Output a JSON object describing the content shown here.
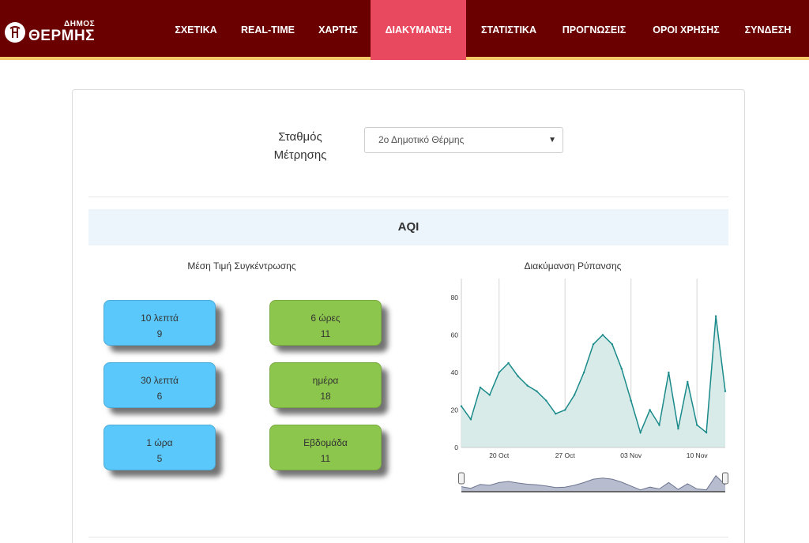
{
  "brand": {
    "top": "ΔΗΜΟΣ",
    "main": "ΘΕΡΜΗΣ",
    "icon": "logo-emblem-icon"
  },
  "nav": {
    "items": [
      {
        "label": "ΣΧΕΤΙΚΑ"
      },
      {
        "label": "REAL-TIME"
      },
      {
        "label": "ΧΑΡΤΗΣ"
      },
      {
        "label": "ΔΙΑΚΥΜΑΝΣΗ",
        "active": true
      },
      {
        "label": "ΣΤΑΤΙΣΤΙΚΑ"
      },
      {
        "label": "ΠΡΟΓΝΩΣΕΙΣ"
      },
      {
        "label": "ΟΡΟΙ ΧΡΗΣΗΣ"
      },
      {
        "label": "ΣΥΝΔΕΣΗ"
      }
    ],
    "active_color": "#e8495f",
    "bar_color": "#6b0000"
  },
  "station": {
    "label_line1": "Σταθμός",
    "label_line2": "Μέτρησης",
    "selected": "2ο Δημοτικό Θέρμης"
  },
  "section": {
    "title": "AQI"
  },
  "averages": {
    "title": "Μέση Τιμή Συγκέντρωσης",
    "cards": [
      {
        "label": "10 λεπτά",
        "value": "9",
        "color": "#5bc8fb"
      },
      {
        "label": "30 λεπτά",
        "value": "6",
        "color": "#5bc8fb"
      },
      {
        "label": "1 ώρα",
        "value": "5",
        "color": "#5bc8fb"
      },
      {
        "label": "6 ώρες",
        "value": "11",
        "color": "#8dc64c"
      },
      {
        "label": "ημέρα",
        "value": "18",
        "color": "#8dc64c"
      },
      {
        "label": "Εβδομάδα",
        "value": "11",
        "color": "#8dc64c"
      }
    ]
  },
  "chart_data": {
    "type": "area",
    "title": "Διακύμανση Ρύπανσης",
    "xlabel": "",
    "ylabel": "",
    "ylim": [
      0,
      90
    ],
    "yticks": [
      0,
      20,
      40,
      60,
      80
    ],
    "x_range": [
      "2019-10-16",
      "2019-11-13"
    ],
    "xticks": [
      {
        "date": "2019-10-20",
        "label": "20 Oct"
      },
      {
        "date": "2019-10-27",
        "label": "27 Oct"
      },
      {
        "date": "2019-11-03",
        "label": "03 Nov"
      },
      {
        "date": "2019-11-10",
        "label": "10 Nov"
      }
    ],
    "grid": "vertical",
    "line_color": "#1a8a8a",
    "fill_color": "#d9ebe9",
    "navigator": true,
    "x": [
      "2019-10-16",
      "2019-10-17",
      "2019-10-18",
      "2019-10-19",
      "2019-10-20",
      "2019-10-21",
      "2019-10-22",
      "2019-10-23",
      "2019-10-24",
      "2019-10-25",
      "2019-10-26",
      "2019-10-27",
      "2019-10-28",
      "2019-10-29",
      "2019-10-30",
      "2019-10-31",
      "2019-11-01",
      "2019-11-02",
      "2019-11-03",
      "2019-11-04",
      "2019-11-05",
      "2019-11-06",
      "2019-11-07",
      "2019-11-08",
      "2019-11-09",
      "2019-11-10",
      "2019-11-11",
      "2019-11-12",
      "2019-11-13"
    ],
    "values": [
      22,
      15,
      32,
      28,
      40,
      45,
      38,
      33,
      30,
      25,
      18,
      20,
      28,
      40,
      55,
      60,
      55,
      42,
      25,
      8,
      20,
      12,
      40,
      10,
      35,
      12,
      8,
      70,
      30
    ]
  }
}
